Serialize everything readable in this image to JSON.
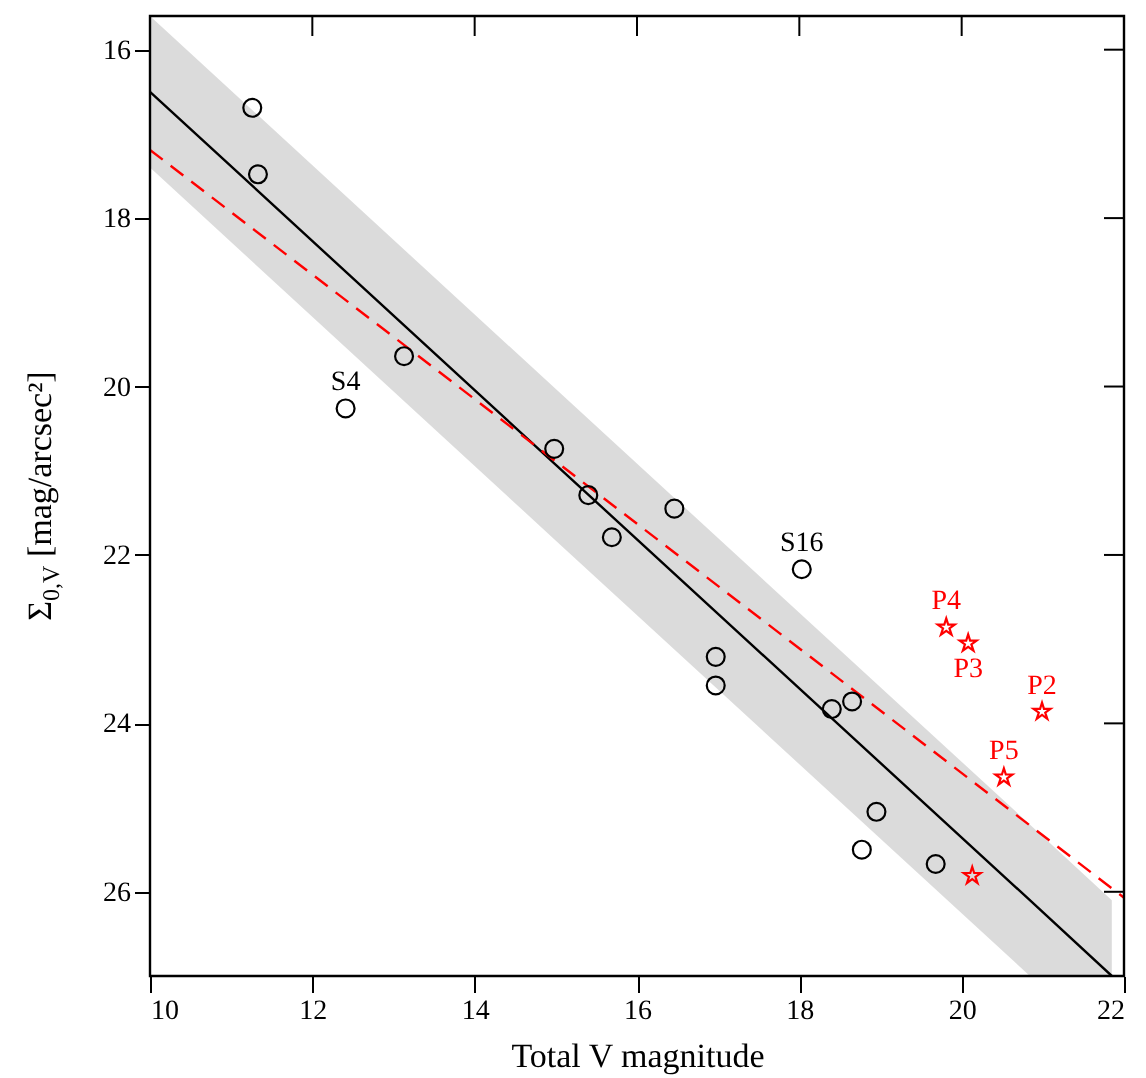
{
  "chart_data": {
    "type": "scatter",
    "xlabel": "Total V magnitude",
    "ylabel": "Σ$_{0,V}$ [mag/arcsec²]",
    "xlim": [
      10,
      22
    ],
    "ylim": [
      27,
      15.6
    ],
    "xticks": [
      10,
      12,
      14,
      16,
      18,
      20,
      22
    ],
    "yticks": [
      16,
      18,
      20,
      22,
      24,
      26
    ],
    "grid": false,
    "series": [
      {
        "type": "line",
        "color": "#000000",
        "line_style": "solid",
        "marker": "none",
        "x": [
          10,
          15,
          20.84,
          21.85
        ],
        "values": [
          16.5,
          20.93,
          26.1,
          27.0
        ],
        "lower": [
          15.6,
          20.03,
          25.2,
          26.1
        ],
        "upper": [
          17.4,
          21.83,
          27.0,
          27.0
        ]
      },
      {
        "type": "line",
        "color": "#ff0000",
        "line_style": "dashed",
        "marker": "none",
        "x": [
          10,
          22
        ],
        "values": [
          17.19,
          26.07
        ]
      },
      {
        "type": "scatter",
        "color": "#000000",
        "marker": "circle",
        "x": [
          11.26,
          11.33,
          13.13,
          12.41,
          14.98,
          15.4,
          15.69,
          16.46,
          16.97,
          16.97,
          18.03,
          18.4,
          18.65,
          18.95,
          18.77,
          19.68
        ],
        "values": [
          16.69,
          17.48,
          19.64,
          20.26,
          20.74,
          21.29,
          21.79,
          21.45,
          23.21,
          23.55,
          22.17,
          23.83,
          23.74,
          25.05,
          25.5,
          25.67
        ]
      },
      {
        "type": "scatter",
        "color": "#ff0000",
        "marker": "star",
        "x": [
          19.81,
          20.08,
          20.99,
          20.52,
          20.13
        ],
        "values": [
          22.86,
          23.05,
          23.86,
          24.64,
          25.81
        ]
      }
    ],
    "annotations": [
      {
        "text": "S4",
        "x": 12.41,
        "y": 20.26
      },
      {
        "text": "S16",
        "x": 18.03,
        "y": 22.17
      },
      {
        "text": "P4",
        "x": 19.81,
        "y": 22.86
      },
      {
        "text": "P3",
        "x": 20.08,
        "y": 23.05
      },
      {
        "text": "P2",
        "x": 20.99,
        "y": 23.86
      },
      {
        "text": "P5",
        "x": 20.52,
        "y": 24.64
      }
    ]
  }
}
